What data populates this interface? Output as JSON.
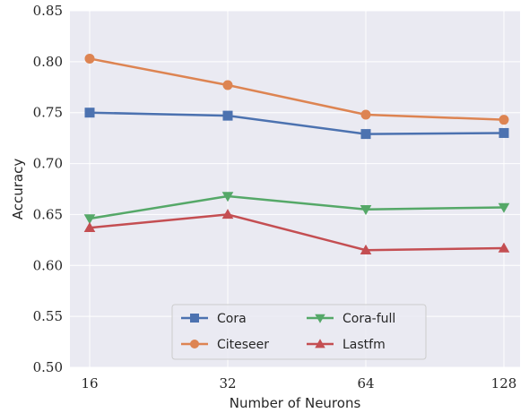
{
  "chart_data": {
    "type": "line",
    "title": "",
    "xlabel": "Number of Neurons",
    "ylabel": "Accuracy",
    "categories": [
      "16",
      "32",
      "64",
      "128"
    ],
    "ylim": [
      0.5,
      0.85
    ],
    "yticks": [
      "0.50",
      "0.55",
      "0.60",
      "0.65",
      "0.70",
      "0.75",
      "0.80",
      "0.85"
    ],
    "grid": true,
    "legend_position": "bottom-center",
    "series": [
      {
        "name": "Cora",
        "marker": "square",
        "color": "#4c72b0",
        "values": [
          0.75,
          0.747,
          0.729,
          0.73
        ]
      },
      {
        "name": "Citeseer",
        "marker": "circle",
        "color": "#dd8452",
        "values": [
          0.803,
          0.777,
          0.748,
          0.743
        ]
      },
      {
        "name": "Cora-full",
        "marker": "triangle-down",
        "color": "#55a868",
        "values": [
          0.646,
          0.668,
          0.655,
          0.657
        ]
      },
      {
        "name": "Lastfm",
        "marker": "triangle-up",
        "color": "#c44e52",
        "values": [
          0.637,
          0.65,
          0.615,
          0.617
        ]
      }
    ]
  }
}
